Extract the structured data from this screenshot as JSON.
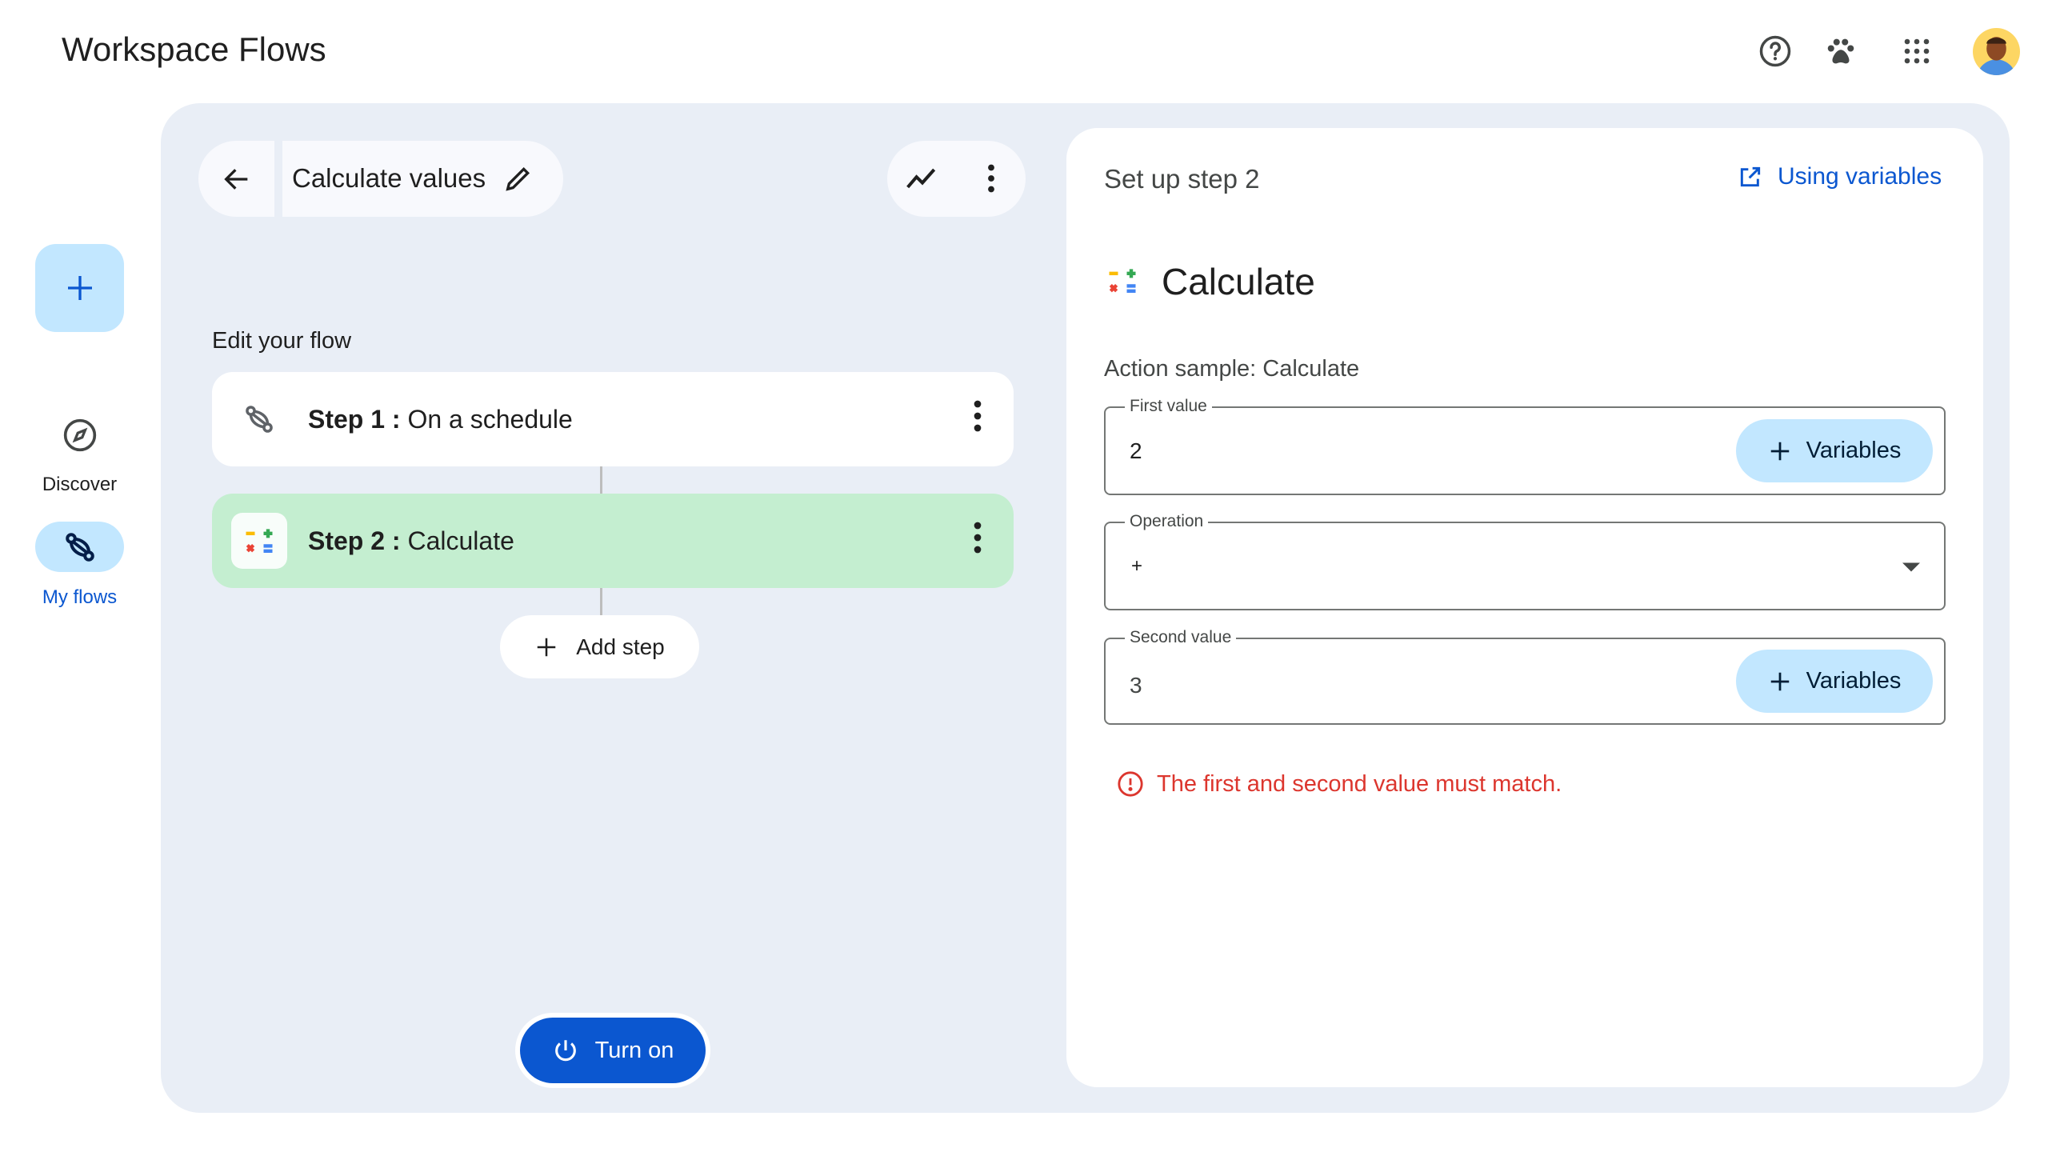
{
  "app": {
    "title": "Workspace Flows"
  },
  "header": {
    "icons": [
      "help-icon",
      "paw-icon",
      "apps-grid-icon",
      "avatar"
    ]
  },
  "sidebar": {
    "create_icon": "plus-icon",
    "items": [
      {
        "label": "Discover",
        "icon": "compass-icon"
      },
      {
        "label": "My flows",
        "icon": "flows-icon",
        "active": true
      }
    ]
  },
  "flow": {
    "name": "Calculate values",
    "section_label": "Edit your flow",
    "steps": [
      {
        "prefix": "Step 1 :",
        "label": "On a schedule",
        "icon": "flows-icon"
      },
      {
        "prefix": "Step 2 :",
        "label": "Calculate",
        "icon": "calculate-icon",
        "selected": true
      }
    ],
    "add_step": "Add step",
    "turn_on": "Turn on"
  },
  "setup": {
    "title": "Set up step 2",
    "help_link": "Using variables",
    "action_title": "Calculate",
    "action_sample": "Action sample: Calculate",
    "fields": [
      {
        "label": "First value",
        "value": "2",
        "button": "Variables"
      },
      {
        "label": "Operation",
        "value": "+"
      },
      {
        "label": "Second value",
        "value": "3",
        "button": "Variables"
      }
    ],
    "error": "The first and second value must match."
  },
  "colors": {
    "accent": "#0b57d0",
    "selected_step": "#c4eed0",
    "error": "#dc362e",
    "panel_bg": "#e9eef6",
    "tonal": "#c2e7ff"
  }
}
